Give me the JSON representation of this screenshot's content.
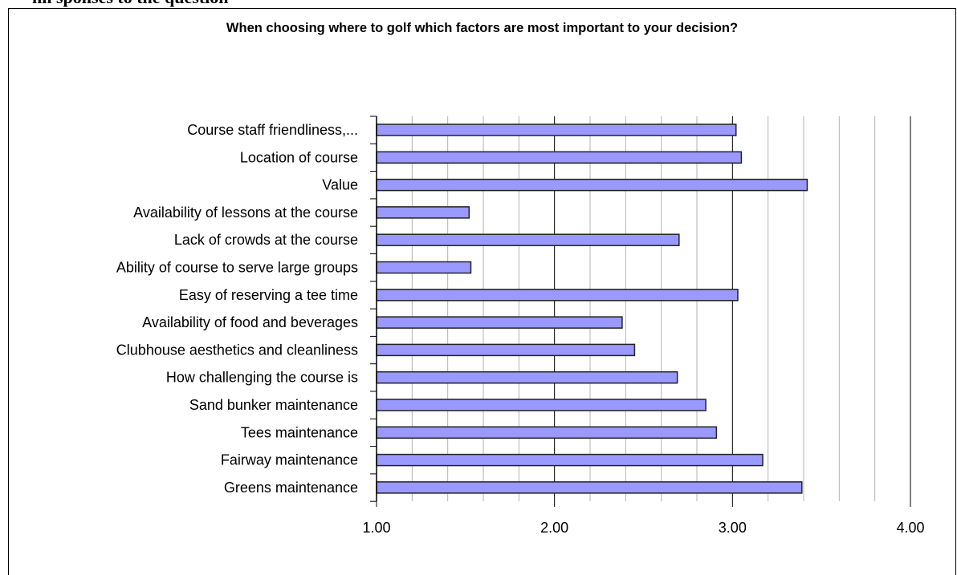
{
  "header": {
    "caption": "hn                          sponses to the question"
  },
  "chart_data": {
    "type": "bar",
    "orientation": "horizontal",
    "title": "When choosing where to golf which factors are most important to your decision?",
    "xlabel": "",
    "ylabel": "",
    "xlim": [
      1.0,
      4.0
    ],
    "x_ticks": [
      "1.00",
      "2.00",
      "3.00",
      "4.00"
    ],
    "minor_gridlines": true,
    "legend": "none",
    "bar_color": "#9999ff",
    "bar_edge_color": "#222222",
    "categories": [
      "Course staff friendliness,...",
      "Location of course",
      "Value",
      "Availability of lessons at the course",
      "Lack of crowds at the course",
      "Ability of course to serve large groups",
      "Easy of reserving a tee time",
      "Availability of food and beverages",
      "Clubhouse aesthetics and cleanliness",
      "How challenging the course is",
      "Sand bunker maintenance",
      "Tees maintenance",
      "Fairway maintenance",
      "Greens maintenance"
    ],
    "values": [
      3.02,
      3.05,
      3.42,
      1.52,
      2.7,
      1.53,
      3.03,
      2.38,
      2.45,
      2.69,
      2.85,
      2.91,
      3.17,
      3.39
    ]
  }
}
